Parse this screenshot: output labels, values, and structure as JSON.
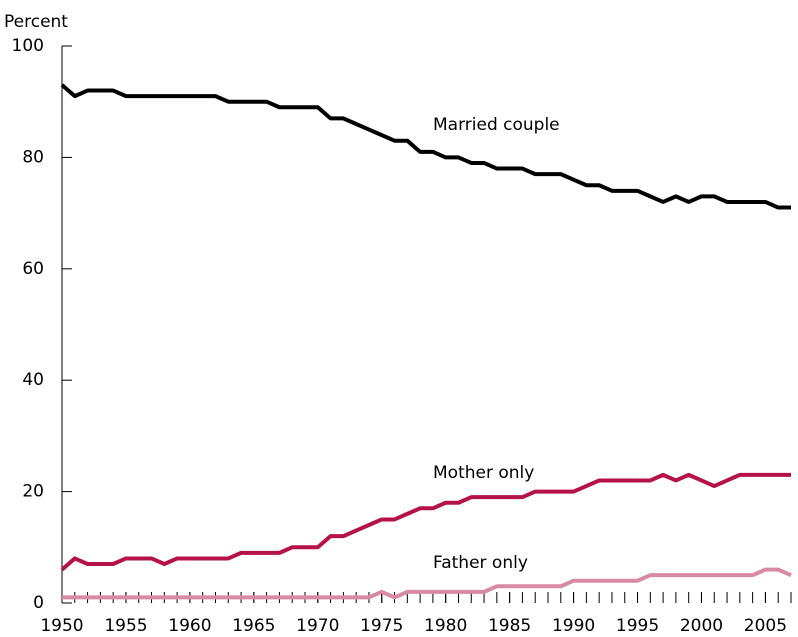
{
  "chart_data": {
    "type": "line",
    "y_label": "Percent",
    "x": [
      1950,
      1951,
      1952,
      1953,
      1954,
      1955,
      1956,
      1957,
      1958,
      1959,
      1960,
      1961,
      1962,
      1963,
      1964,
      1965,
      1966,
      1967,
      1968,
      1969,
      1970,
      1971,
      1972,
      1973,
      1974,
      1975,
      1976,
      1977,
      1978,
      1979,
      1980,
      1981,
      1982,
      1983,
      1984,
      1985,
      1986,
      1987,
      1988,
      1989,
      1990,
      1991,
      1992,
      1993,
      1994,
      1995,
      1996,
      1997,
      1998,
      1999,
      2000,
      2001,
      2002,
      2003,
      2004,
      2005,
      2006,
      2007
    ],
    "series": [
      {
        "name": "Married couple",
        "color": "#000000",
        "values": [
          93,
          91,
          92,
          92,
          92,
          91,
          91,
          91,
          91,
          91,
          91,
          91,
          91,
          90,
          90,
          90,
          90,
          89,
          89,
          89,
          89,
          87,
          87,
          86,
          85,
          84,
          83,
          83,
          81,
          81,
          80,
          80,
          79,
          79,
          78,
          78,
          78,
          77,
          77,
          77,
          76,
          75,
          75,
          74,
          74,
          74,
          73,
          72,
          73,
          72,
          73,
          73,
          72,
          72,
          72,
          72,
          71,
          71
        ]
      },
      {
        "name": "Mother only",
        "color": "#b5124a",
        "values": [
          6,
          8,
          7,
          7,
          7,
          8,
          8,
          8,
          7,
          8,
          8,
          8,
          8,
          8,
          9,
          9,
          9,
          9,
          10,
          10,
          10,
          12,
          12,
          13,
          14,
          15,
          15,
          16,
          17,
          17,
          18,
          18,
          19,
          19,
          19,
          19,
          19,
          20,
          20,
          20,
          20,
          21,
          22,
          22,
          22,
          22,
          22,
          23,
          22,
          23,
          22,
          21,
          22,
          23,
          23,
          23,
          23,
          23
        ]
      },
      {
        "name": "Father only",
        "color": "#d98aa3",
        "values": [
          1,
          1,
          1,
          1,
          1,
          1,
          1,
          1,
          1,
          1,
          1,
          1,
          1,
          1,
          1,
          1,
          1,
          1,
          1,
          1,
          1,
          1,
          1,
          1,
          1,
          2,
          1,
          2,
          2,
          2,
          2,
          2,
          2,
          2,
          3,
          3,
          3,
          3,
          3,
          3,
          4,
          4,
          4,
          4,
          4,
          4,
          5,
          5,
          5,
          5,
          5,
          5,
          5,
          5,
          5,
          6,
          6,
          5
        ]
      }
    ],
    "xlim": [
      1950,
      2007
    ],
    "xticks": [
      1950,
      1955,
      1960,
      1965,
      1970,
      1975,
      1980,
      1985,
      1990,
      1995,
      2000,
      2005
    ],
    "ylim": [
      0,
      100
    ],
    "yticks": [
      0,
      20,
      40,
      60,
      80,
      100
    ],
    "grid": false
  }
}
